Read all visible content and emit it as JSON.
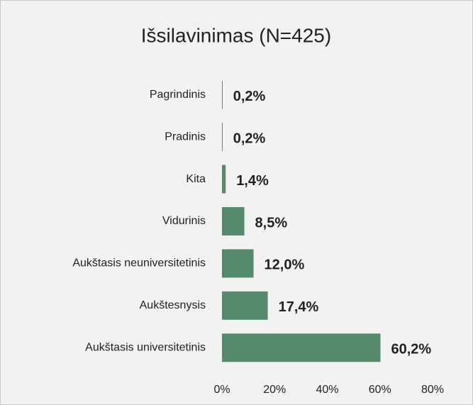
{
  "chart_data": {
    "type": "barh",
    "title": "Išsilavinimas (N=425)",
    "categories": [
      "Pagrindinis",
      "Pradinis",
      "Kita",
      "Vidurinis",
      "Aukštasis neuniversitetinis",
      "Aukštesnysis",
      "Aukštasis universitetinis"
    ],
    "values": [
      0.2,
      0.2,
      1.4,
      8.5,
      12.0,
      17.4,
      60.2
    ],
    "value_labels": [
      "0,2%",
      "0,2%",
      "1,4%",
      "8,5%",
      "12,0%",
      "17,4%",
      "60,2%"
    ],
    "color": "#578a6d",
    "xlim": [
      0,
      80
    ],
    "xticks": [
      {
        "value": 0,
        "label": "0%"
      },
      {
        "value": 20,
        "label": "20%"
      },
      {
        "value": 40,
        "label": "40%"
      },
      {
        "value": 60,
        "label": "60%"
      },
      {
        "value": 80,
        "label": "80%"
      }
    ],
    "grid": false
  }
}
